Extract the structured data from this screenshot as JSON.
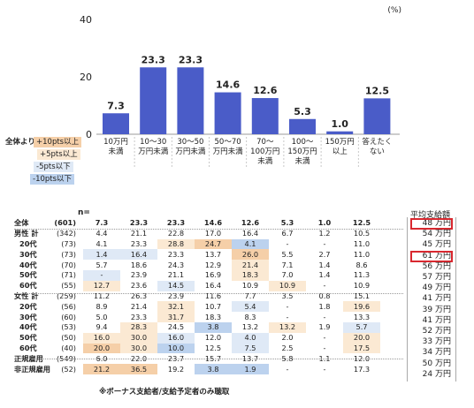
{
  "chart_data": {
    "type": "bar",
    "unit": "(%)",
    "ylim": [
      0,
      40
    ],
    "yticks": [
      0,
      20,
      40
    ],
    "categories": [
      "10万円\n未満",
      "10～30\n万円未満",
      "30～50\n万円未満",
      "50～70\n万円未満",
      "70～\n100万円\n未満",
      "100～\n150万円\n未満",
      "150万円\n以上",
      "答えたく\nない"
    ],
    "values": [
      7.3,
      23.3,
      23.3,
      14.6,
      12.6,
      5.3,
      1.0,
      12.5
    ],
    "color": "#4a5cc8"
  },
  "legend": {
    "title": "全体より",
    "items": [
      {
        "label": "+10pts以上",
        "color": "#f5cfa8"
      },
      {
        "label": "+5pts以上",
        "color": "#fbe9d3"
      },
      {
        "label": "-5pts以下",
        "color": "#dfe9f6"
      },
      {
        "label": "-10pts以下",
        "color": "#bcd2ee"
      }
    ]
  },
  "table": {
    "n_header": "n=",
    "avg_header": "平均支給額",
    "avg_unit": "万円",
    "rows": [
      {
        "label": "全体",
        "n": "(601)",
        "values": [
          "7.3",
          "23.3",
          "23.3",
          "14.6",
          "12.6",
          "5.3",
          "1.0",
          "12.5"
        ],
        "hl": [
          "",
          "",
          "",
          "",
          "",
          "",
          "",
          ""
        ],
        "avg": "48",
        "bold": true,
        "box": true
      },
      {
        "label": "男性 計",
        "n": "(342)",
        "values": [
          "4.4",
          "21.1",
          "22.8",
          "17.0",
          "16.4",
          "6.7",
          "1.2",
          "10.5"
        ],
        "hl": [
          "",
          "",
          "",
          "",
          "",
          "",
          "",
          ""
        ],
        "avg": "54"
      },
      {
        "label": "20代",
        "n": "(73)",
        "values": [
          "4.1",
          "23.3",
          "28.8",
          "24.7",
          "4.1",
          "-",
          "-",
          "11.0"
        ],
        "hl": [
          "",
          "",
          "hl2",
          "hl1",
          "lo1",
          "",
          "",
          ""
        ],
        "avg": "45"
      },
      {
        "label": "30代",
        "n": "(73)",
        "values": [
          "1.4",
          "16.4",
          "23.3",
          "13.7",
          "26.0",
          "5.5",
          "2.7",
          "11.0"
        ],
        "hl": [
          "lo2",
          "lo2",
          "",
          "",
          "hl1",
          "",
          "",
          ""
        ],
        "avg": "61",
        "box": true
      },
      {
        "label": "40代",
        "n": "(70)",
        "values": [
          "5.7",
          "18.6",
          "24.3",
          "12.9",
          "21.4",
          "7.1",
          "1.4",
          "8.6"
        ],
        "hl": [
          "",
          "",
          "",
          "",
          "hl2",
          "",
          "",
          ""
        ],
        "avg": "56"
      },
      {
        "label": "50代",
        "n": "(71)",
        "values": [
          "-",
          "23.9",
          "21.1",
          "16.9",
          "18.3",
          "7.0",
          "1.4",
          "11.3"
        ],
        "hl": [
          "lo2",
          "",
          "",
          "",
          "hl2",
          "",
          "",
          ""
        ],
        "avg": "57"
      },
      {
        "label": "60代",
        "n": "(55)",
        "values": [
          "12.7",
          "23.6",
          "14.5",
          "16.4",
          "10.9",
          "10.9",
          "-",
          "10.9"
        ],
        "hl": [
          "hl2",
          "",
          "lo2",
          "",
          "",
          "hl2",
          "",
          ""
        ],
        "avg": "49"
      },
      {
        "label": "女性 計",
        "n": "(259)",
        "values": [
          "11.2",
          "26.3",
          "23.9",
          "11.6",
          "7.7",
          "3.5",
          "0.8",
          "15.1"
        ],
        "hl": [
          "",
          "",
          "",
          "",
          "",
          "",
          "",
          ""
        ],
        "avg": "41"
      },
      {
        "label": "20代",
        "n": "(56)",
        "values": [
          "8.9",
          "21.4",
          "32.1",
          "10.7",
          "5.4",
          "-",
          "1.8",
          "19.6"
        ],
        "hl": [
          "",
          "",
          "hl2",
          "",
          "lo2",
          "",
          "",
          "hl2"
        ],
        "avg": "39"
      },
      {
        "label": "30代",
        "n": "(60)",
        "values": [
          "5.0",
          "23.3",
          "31.7",
          "18.3",
          "8.3",
          "-",
          "-",
          "13.3"
        ],
        "hl": [
          "",
          "",
          "hl2",
          "",
          "",
          "",
          "",
          ""
        ],
        "avg": "41"
      },
      {
        "label": "40代",
        "n": "(53)",
        "values": [
          "9.4",
          "28.3",
          "24.5",
          "3.8",
          "13.2",
          "13.2",
          "1.9",
          "5.7"
        ],
        "hl": [
          "",
          "hl2",
          "",
          "lo1",
          "",
          "hl2",
          "",
          "lo2"
        ],
        "avg": "52"
      },
      {
        "label": "50代",
        "n": "(50)",
        "values": [
          "16.0",
          "30.0",
          "16.0",
          "12.0",
          "4.0",
          "2.0",
          "-",
          "20.0"
        ],
        "hl": [
          "hl2",
          "hl2",
          "lo2",
          "",
          "lo2",
          "",
          "",
          "hl2"
        ],
        "avg": "33"
      },
      {
        "label": "60代",
        "n": "(40)",
        "values": [
          "20.0",
          "30.0",
          "10.0",
          "12.5",
          "7.5",
          "2.5",
          "-",
          "17.5"
        ],
        "hl": [
          "hl1",
          "hl2",
          "lo1",
          "",
          "lo2",
          "",
          "",
          "hl2"
        ],
        "avg": "34"
      },
      {
        "label": "正規雇用",
        "n": "(549)",
        "values": [
          "6.0",
          "22.0",
          "23.7",
          "15.7",
          "13.7",
          "5.8",
          "1.1",
          "12.0"
        ],
        "hl": [
          "",
          "",
          "",
          "",
          "",
          "",
          "",
          ""
        ],
        "avg": "50"
      },
      {
        "label": "非正規雇用",
        "n": "(52)",
        "values": [
          "21.2",
          "36.5",
          "19.2",
          "3.8",
          "1.9",
          "-",
          "-",
          "17.3"
        ],
        "hl": [
          "hl1",
          "hl1",
          "",
          "lo1",
          "lo1",
          "",
          "",
          ""
        ],
        "avg": "24"
      }
    ]
  },
  "note": "※ボーナス支給者/支給予定者のみ聴取"
}
